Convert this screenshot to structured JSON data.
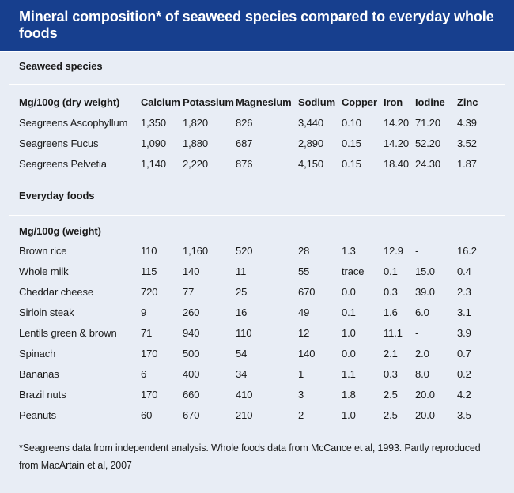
{
  "title": "Mineral composition* of seaweed species compared to everyday whole foods",
  "seaweed": {
    "section": "Seaweed species",
    "header": [
      "Mg/100g (dry weight)",
      "Calcium",
      "Potassium",
      "Magnesium",
      "Sodium",
      "Copper",
      "Iron",
      "Iodine",
      "Zinc"
    ],
    "rows": [
      [
        "Seagreens Ascophyllum",
        "1,350",
        "1,820",
        "826",
        "3,440",
        "0.10",
        "14.20",
        "71.20",
        "4.39"
      ],
      [
        "Seagreens Fucus",
        "1,090",
        "1,880",
        "687",
        "2,890",
        "0.15",
        "14.20",
        "52.20",
        "3.52"
      ],
      [
        "Seagreens Pelvetia",
        "1,140",
        "2,220",
        "876",
        "4,150",
        "0.15",
        "18.40",
        "24.30",
        "1.87"
      ]
    ]
  },
  "foods": {
    "section": "Everyday foods",
    "header": [
      "Mg/100g (weight)"
    ],
    "rows": [
      [
        "Brown rice",
        "110",
        "1,160",
        "520",
        "28",
        "1.3",
        "12.9",
        "-",
        "16.2"
      ],
      [
        "Whole milk",
        "115",
        "140",
        "11",
        "55",
        "trace",
        "0.1",
        "15.0",
        "0.4"
      ],
      [
        "Cheddar cheese",
        "720",
        "77",
        "25",
        "670",
        "0.0",
        "0.3",
        "39.0",
        "2.3"
      ],
      [
        "Sirloin steak",
        "9",
        "260",
        "16",
        "49",
        "0.1",
        "1.6",
        "6.0",
        "3.1"
      ],
      [
        "Lentils green & brown",
        "71",
        "940",
        "110",
        "12",
        "1.0",
        "11.1",
        "-",
        "3.9"
      ],
      [
        "Spinach",
        "170",
        "500",
        "54",
        "140",
        "0.0",
        "2.1",
        "2.0",
        "0.7"
      ],
      [
        "Bananas",
        "6",
        "400",
        "34",
        "1",
        "1.1",
        "0.3",
        "8.0",
        "0.2"
      ],
      [
        "Brazil nuts",
        "170",
        "660",
        "410",
        "3",
        "1.8",
        "2.5",
        "20.0",
        "4.2"
      ],
      [
        "Peanuts",
        "60",
        "670",
        "210",
        "2",
        "1.0",
        "2.5",
        "20.0",
        "3.5"
      ]
    ]
  },
  "footnote": "*Seagreens data from independent analysis. Whole foods data from McCance et al, 1993. Partly reproduced from MacArtain et al, 2007"
}
